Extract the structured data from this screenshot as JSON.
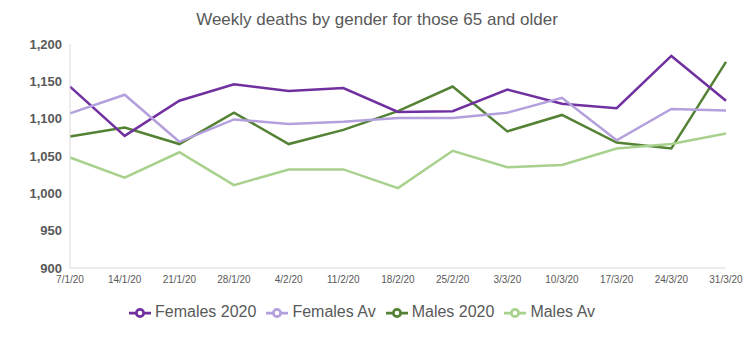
{
  "chart_data": {
    "type": "line",
    "title": "Weekly deaths by gender for those 65 and older",
    "categories": [
      "7/1/20",
      "14/1/20",
      "21/1/20",
      "28/1/20",
      "4/2/20",
      "11/2/20",
      "18/2/20",
      "25/2/20",
      "3/3/20",
      "10/3/20",
      "17/3/20",
      "24/3/20",
      "31/3/20"
    ],
    "series": [
      {
        "name": "Males 2020",
        "color": "#548235",
        "values": [
          1076,
          1088,
          1066,
          1108,
          1066,
          1085,
          1110,
          1143,
          1083,
          1105,
          1068,
          1060,
          1176
        ]
      },
      {
        "name": "Males Av",
        "color": "#a9d18e",
        "values": [
          1048,
          1021,
          1055,
          1011,
          1032,
          1032,
          1007,
          1057,
          1035,
          1038,
          1060,
          1066,
          1080
        ]
      },
      {
        "name": "Females 2020",
        "color": "#7030a0",
        "values": [
          1143,
          1077,
          1124,
          1146,
          1137,
          1141,
          1109,
          1110,
          1139,
          1120,
          1114,
          1184,
          1124
        ]
      },
      {
        "name": "Females Av",
        "color": "#b4a0dc",
        "values": [
          1107,
          1132,
          1069,
          1099,
          1093,
          1096,
          1101,
          1101,
          1108,
          1128,
          1071,
          1113,
          1111
        ]
      }
    ],
    "ylim": [
      900,
      1200
    ],
    "yticks": [
      900,
      950,
      {
        "value": 1000,
        "label": "1,000"
      },
      {
        "value": 1050,
        "label": "1,050"
      },
      {
        "value": 1100,
        "label": "1,100"
      },
      {
        "value": 1150,
        "label": "1,150"
      },
      {
        "value": 1200,
        "label": "1,200"
      }
    ],
    "grid": false,
    "legend": "bottom"
  }
}
